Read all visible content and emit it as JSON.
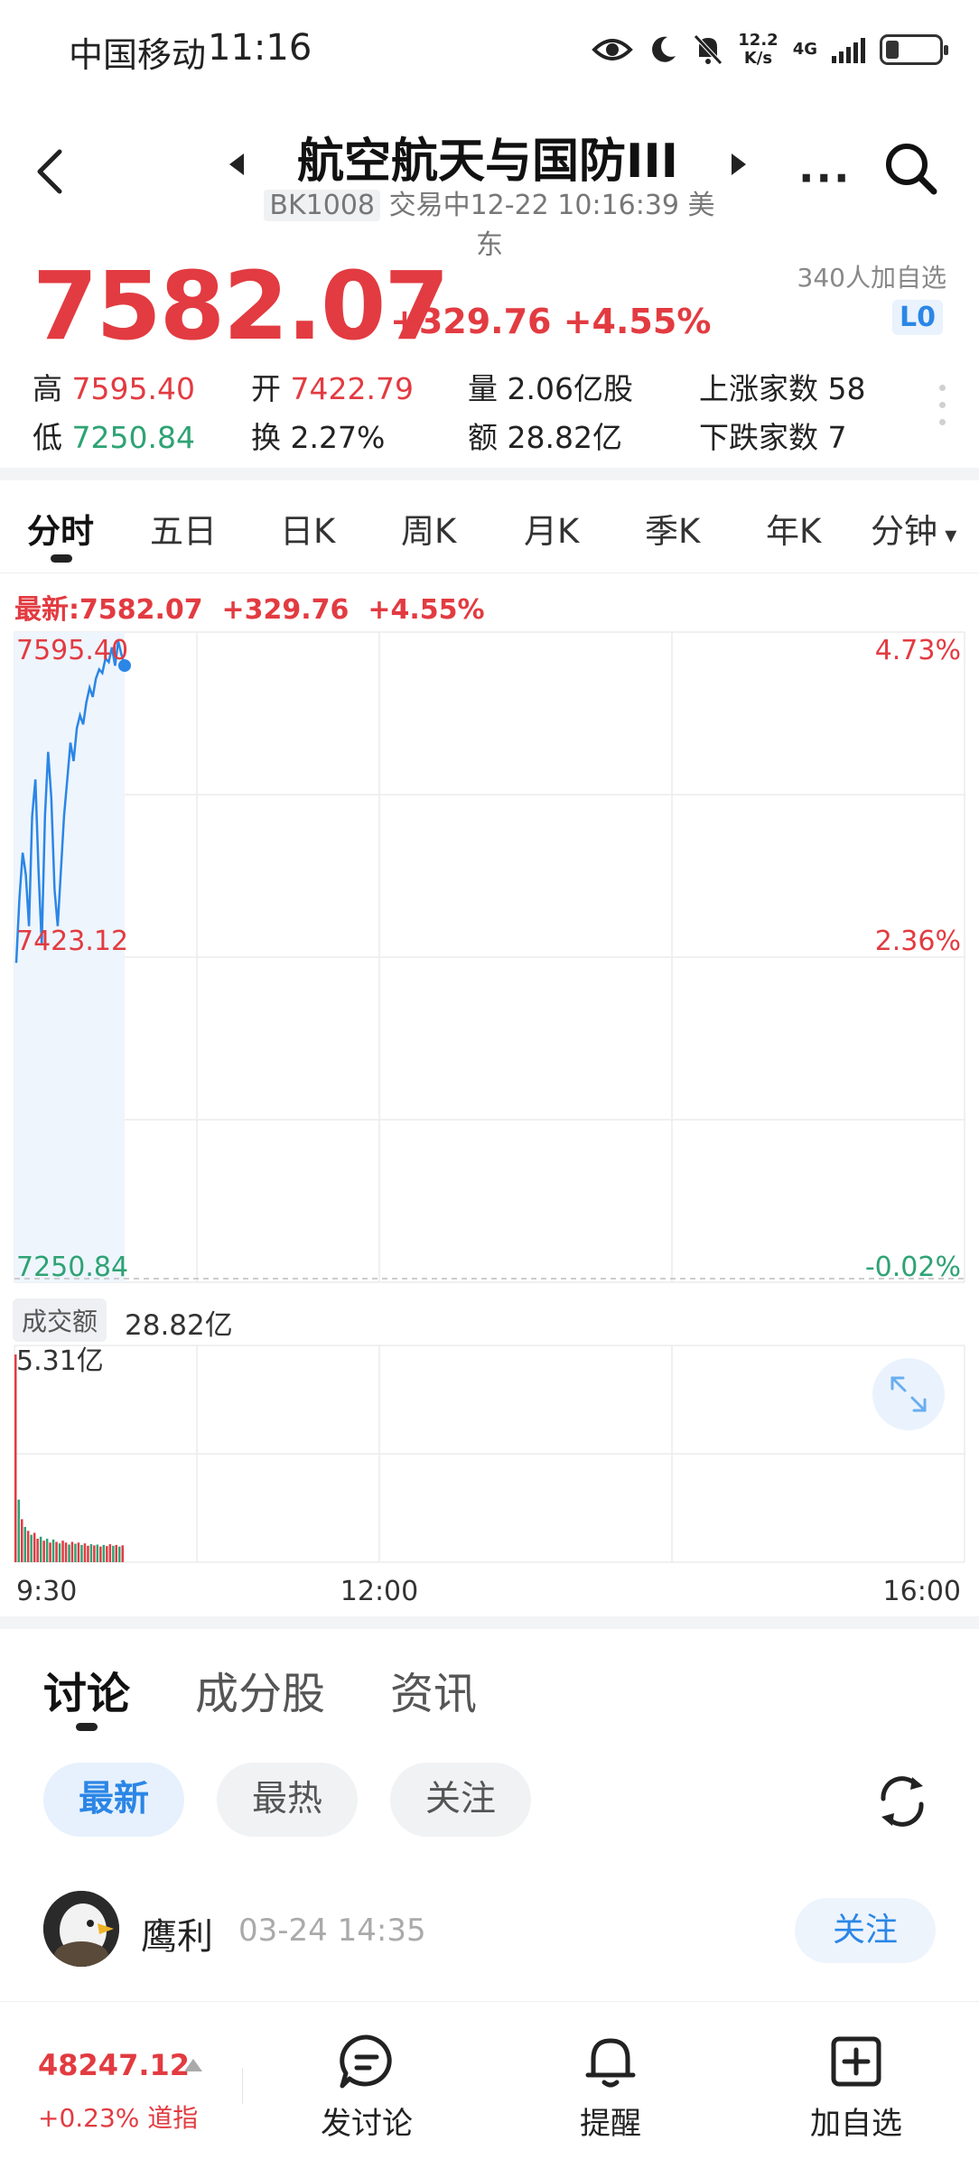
{
  "status_bar": {
    "carrier": "中国移动",
    "time": "11:16",
    "net_speed": "12.2",
    "net_unit": "K/s",
    "network": "4G"
  },
  "header": {
    "title": "航空航天与国防III",
    "code": "BK1008",
    "status": "交易中12-22 10:16:39 美东",
    "icons": [
      "back-icon",
      "prev-arrow-icon",
      "next-arrow-icon",
      "more-icon",
      "search-icon"
    ]
  },
  "quote": {
    "price": "7582.07",
    "change": "+329.76",
    "change_pct": "+4.55%",
    "followers": "340人加自选",
    "level_badge": "L0",
    "high_label": "高",
    "high": "7595.40",
    "low_label": "低",
    "low": "7250.84",
    "open_label": "开",
    "open": "7422.79",
    "turnover_label": "换",
    "turnover": "2.27%",
    "volume_label": "量",
    "volume": "2.06亿股",
    "amount_label": "额",
    "amount": "28.82亿",
    "rise_label": "上涨家数",
    "rise": "58",
    "fall_label": "下跌家数",
    "fall": "7"
  },
  "period_tabs": [
    "分时",
    "五日",
    "日K",
    "周K",
    "月K",
    "季K",
    "年K",
    "分钟"
  ],
  "chart_header": {
    "latest": "最新:7582.07",
    "change": "+329.76",
    "change_pct": "+4.55%"
  },
  "chart_labels": {
    "y_top": "7595.40",
    "y_mid": "7423.12",
    "y_bottom": "7250.84",
    "pct_top": "4.73%",
    "pct_mid": "2.36%",
    "pct_bottom": "-0.02%",
    "amount_tag": "成交额",
    "amount_total": "28.82亿",
    "vol_max": "5.31亿",
    "x_start": "9:30",
    "x_mid": "12:00",
    "x_end": "16:00"
  },
  "chart_data": [
    {
      "type": "line",
      "title": "",
      "xlabel": "",
      "ylabel": "",
      "x_range": [
        "9:30",
        "16:00"
      ],
      "ylim": [
        7250.84,
        7595.4
      ],
      "grid": true,
      "series": [
        {
          "values": [
            7420,
            7455,
            7480,
            7468,
            7440,
            7500,
            7520,
            7470,
            7430,
            7500,
            7535,
            7510,
            7460,
            7440,
            7470,
            7500,
            7520,
            7540,
            7530,
            7548,
            7555,
            7550,
            7562,
            7570,
            7565,
            7575,
            7580,
            7578,
            7586,
            7584,
            7592,
            7582,
            7595.4,
            7588,
            7582.07
          ]
        }
      ]
    },
    {
      "type": "bar",
      "title": "",
      "ylim": [
        0,
        5.31
      ],
      "ylabel": "",
      "values": [
        5.31,
        1.6,
        1.1,
        0.9,
        0.8,
        0.7,
        0.75,
        0.6,
        0.65,
        0.55,
        0.6,
        0.5,
        0.58,
        0.52,
        0.48,
        0.55,
        0.5,
        0.45,
        0.52,
        0.47,
        0.5,
        0.44,
        0.48,
        0.42,
        0.46,
        0.43,
        0.45,
        0.4,
        0.44,
        0.41,
        0.46,
        0.42,
        0.44,
        0.4,
        0.43
      ],
      "up": [
        true,
        false,
        true,
        false,
        true,
        false,
        true,
        true,
        false,
        true,
        false,
        true,
        false,
        true,
        false,
        true,
        true,
        false,
        true,
        false,
        true,
        false,
        true,
        true,
        false,
        true,
        false,
        true,
        false,
        true,
        true,
        false,
        true,
        false,
        true
      ]
    }
  ],
  "discussion": {
    "tabs": [
      "讨论",
      "成分股",
      "资讯"
    ],
    "filters": [
      "最新",
      "最热",
      "关注"
    ],
    "post": {
      "author": "鹰利",
      "time": "03-24 14:35",
      "follow_label": "关注"
    }
  },
  "bottom_bar": {
    "index_value": "48247.12",
    "index_change": "+0.23% 道指",
    "buttons": [
      "发讨论",
      "提醒",
      "加自选"
    ]
  },
  "colors": {
    "up": "#e23b41",
    "down": "#2ea374",
    "accent": "#2b86e6",
    "line": "#2b86e6"
  }
}
